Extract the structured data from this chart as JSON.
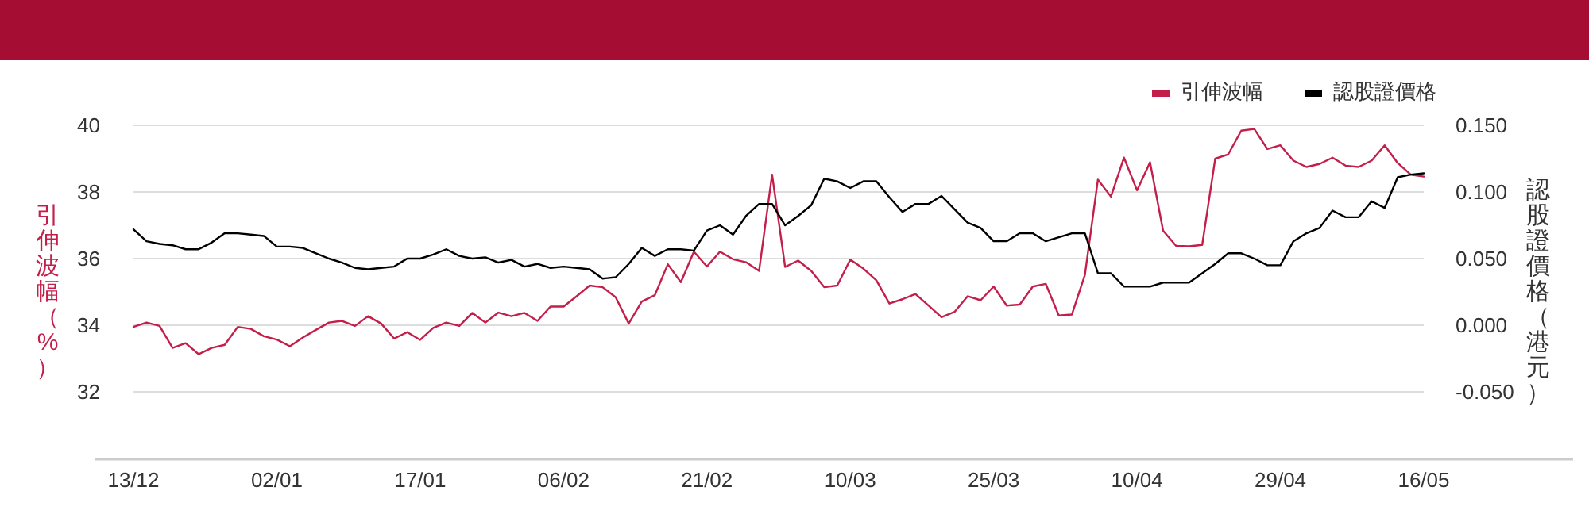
{
  "chart_data": {
    "type": "line",
    "categories": [
      "13/12",
      null,
      null,
      null,
      null,
      null,
      null,
      null,
      null,
      null,
      null,
      "02/01",
      null,
      null,
      null,
      null,
      null,
      null,
      null,
      null,
      null,
      null,
      "17/01",
      null,
      null,
      null,
      null,
      null,
      null,
      null,
      null,
      null,
      null,
      "06/02",
      null,
      null,
      null,
      null,
      null,
      null,
      null,
      null,
      null,
      null,
      "21/02",
      null,
      null,
      null,
      null,
      null,
      null,
      null,
      null,
      null,
      null,
      "10/03",
      null,
      null,
      null,
      null,
      null,
      null,
      null,
      null,
      null,
      null,
      "25/03",
      null,
      null,
      null,
      null,
      null,
      null,
      null,
      null,
      null,
      null,
      "10/04",
      null,
      null,
      null,
      null,
      null,
      null,
      null,
      null,
      null,
      null,
      "29/04",
      null,
      null,
      null,
      null,
      null,
      null,
      null,
      null,
      null,
      null,
      "16/05"
    ],
    "series": [
      {
        "name": "引伸波幅",
        "color": "#c41e4a",
        "values": [
          33.95,
          34.08,
          33.98,
          33.32,
          33.46,
          33.13,
          33.32,
          33.41,
          33.95,
          33.89,
          33.67,
          33.57,
          33.37,
          33.63,
          33.86,
          34.08,
          34.13,
          33.98,
          34.27,
          34.05,
          33.6,
          33.79,
          33.56,
          33.92,
          34.08,
          33.98,
          34.37,
          34.08,
          34.38,
          34.27,
          34.37,
          34.13,
          34.56,
          34.56,
          34.87,
          35.19,
          35.14,
          34.84,
          34.05,
          34.71,
          34.9,
          35.83,
          35.29,
          36.21,
          35.76,
          36.21,
          35.98,
          35.89,
          35.63,
          38.52,
          35.75,
          35.94,
          35.63,
          35.14,
          35.19,
          35.97,
          35.7,
          35.35,
          34.65,
          34.78,
          34.94,
          34.59,
          34.24,
          34.4,
          34.87,
          34.75,
          35.16,
          34.59,
          34.62,
          35.16,
          35.24,
          34.29,
          34.32,
          35.51,
          38.37,
          37.86,
          39.03,
          38.05,
          38.89,
          36.84,
          36.38,
          36.37,
          36.41,
          39.0,
          39.13,
          39.84,
          39.89,
          39.29,
          39.4,
          38.94,
          38.75,
          38.84,
          39.03,
          38.79,
          38.75,
          38.94,
          39.4,
          38.87,
          38.52,
          38.46
        ]
      },
      {
        "name": "認股證價格",
        "color": "#000000",
        "axis": "y2",
        "values": [
          0.072,
          0.063,
          0.061,
          0.06,
          0.057,
          0.057,
          0.062,
          0.069,
          0.069,
          0.068,
          0.067,
          0.059,
          0.059,
          0.058,
          0.054,
          0.05,
          0.047,
          0.043,
          0.042,
          0.043,
          0.044,
          0.05,
          0.05,
          0.053,
          0.057,
          0.052,
          0.05,
          0.051,
          0.047,
          0.049,
          0.044,
          0.046,
          0.043,
          0.044,
          0.043,
          0.042,
          0.035,
          0.036,
          0.046,
          0.058,
          0.052,
          0.057,
          0.057,
          0.056,
          0.071,
          0.075,
          0.068,
          0.082,
          0.091,
          0.091,
          0.075,
          0.082,
          0.09,
          0.11,
          0.108,
          0.103,
          0.108,
          0.108,
          0.096,
          0.085,
          0.091,
          0.091,
          0.097,
          0.087,
          0.077,
          0.073,
          0.063,
          0.063,
          0.069,
          0.069,
          0.063,
          0.066,
          0.069,
          0.069,
          0.039,
          0.039,
          0.029,
          0.029,
          0.029,
          0.032,
          0.032,
          0.032,
          0.039,
          0.046,
          0.054,
          0.054,
          0.05,
          0.045,
          0.045,
          0.063,
          0.069,
          0.073,
          0.086,
          0.081,
          0.081,
          0.093,
          0.088,
          0.111,
          0.113,
          0.114
        ]
      }
    ],
    "ylabel": "引伸波幅（%）",
    "y2label": "認股證價格（港元）",
    "ylim": [
      30,
      40
    ],
    "yticks": [
      32,
      34,
      36,
      38,
      40
    ],
    "y2lim": [
      -0.1,
      0.15
    ],
    "y2ticks": [
      {
        "value": -0.05,
        "label": "-0.050"
      },
      {
        "value": 0,
        "label": "0.000"
      },
      {
        "value": 0.05,
        "label": "0.050"
      },
      {
        "value": 0.1,
        "label": "0.100"
      },
      {
        "value": 0.15,
        "label": "0.150"
      }
    ],
    "grid": "y",
    "legend": "top right"
  }
}
